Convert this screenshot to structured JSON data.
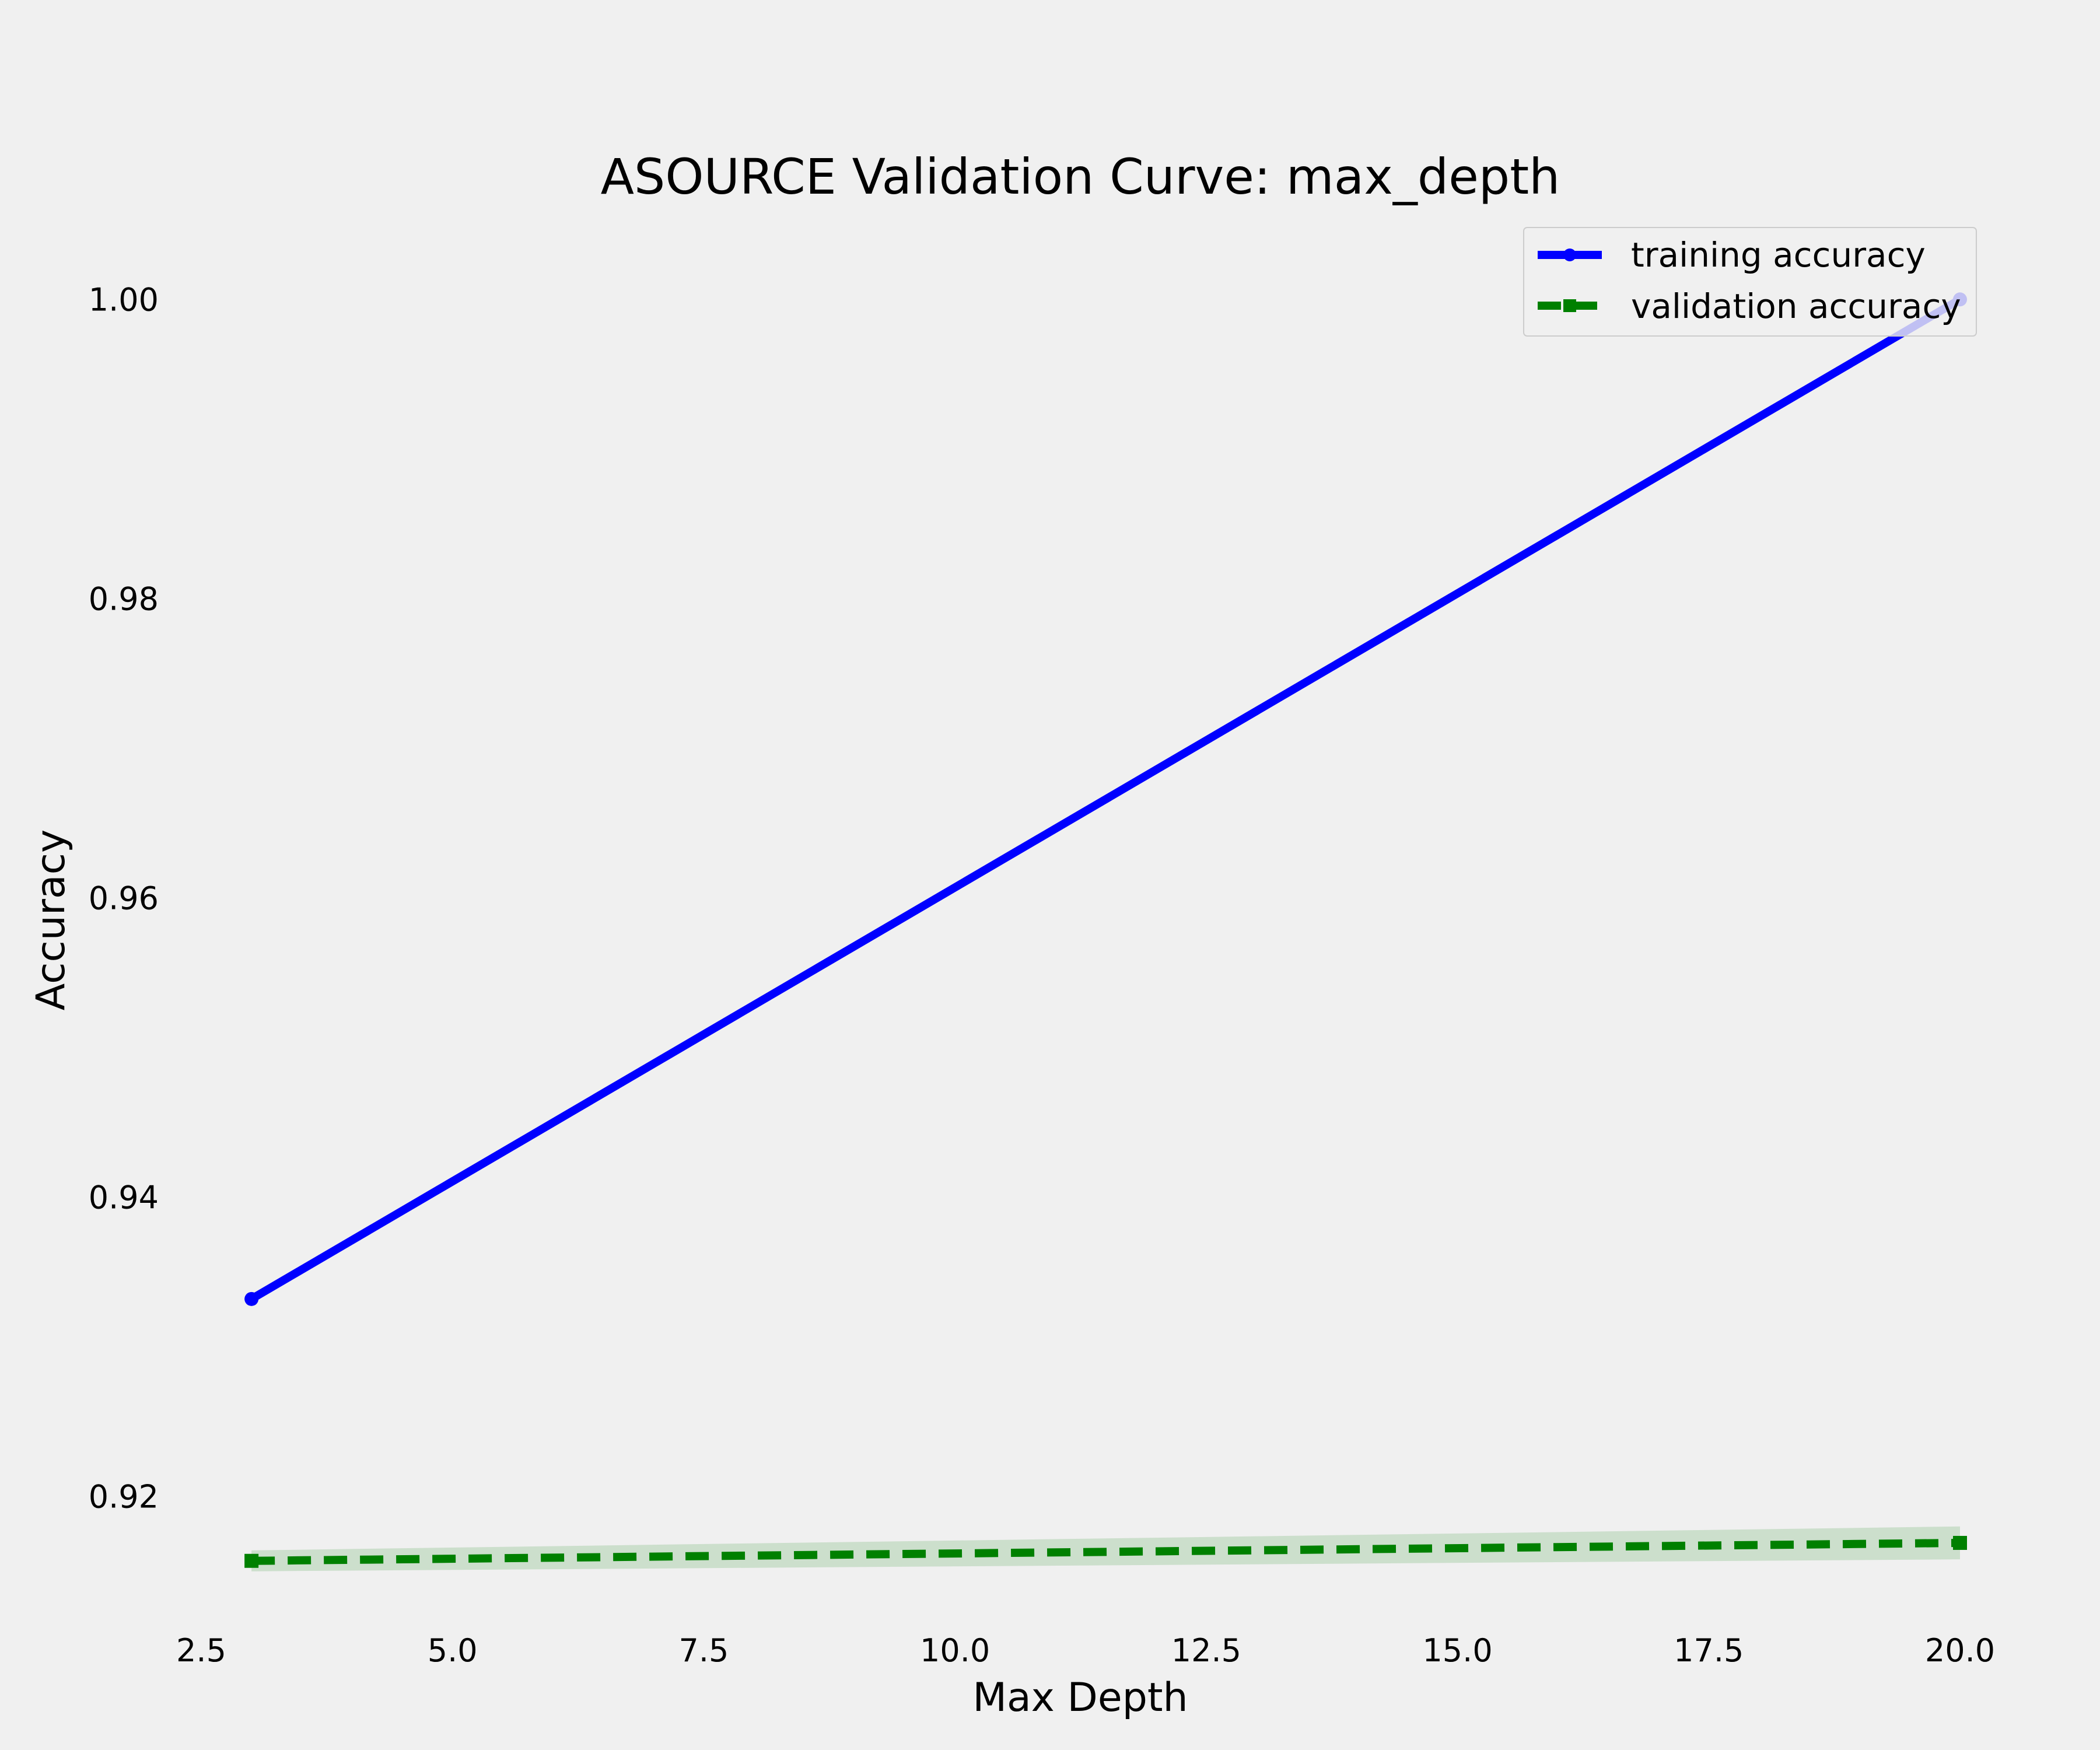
{
  "chart_data": {
    "type": "line",
    "title": "ASOURCE Validation Curve: max_depth",
    "xlabel": "Max Depth",
    "ylabel": "Accuracy",
    "xlim": [
      2.5,
      20.0
    ],
    "ylim": [
      0.913,
      1.002
    ],
    "xticks": [
      2.5,
      5.0,
      7.5,
      10.0,
      12.5,
      15.0,
      17.5,
      20.0
    ],
    "yticks": [
      0.92,
      0.94,
      0.96,
      0.98,
      1.0
    ],
    "xtick_labels": [
      "2.5",
      "5.0",
      "7.5",
      "10.0",
      "12.5",
      "15.0",
      "17.5",
      "20.0"
    ],
    "ytick_labels": [
      "0.92",
      "0.94",
      "0.96",
      "0.98",
      "1.00"
    ],
    "grid": false,
    "legend_position": "top-right",
    "series": [
      {
        "name": "training accuracy",
        "color": "#0000ff",
        "style": "solid",
        "marker": "circle",
        "x": [
          3,
          20
        ],
        "y": [
          0.9332,
          1.0
        ],
        "band": [
          [
            0.9332,
            0.9332
          ],
          [
            1.0,
            1.0
          ]
        ]
      },
      {
        "name": "validation accuracy",
        "color": "#008000",
        "style": "dashed",
        "marker": "square",
        "x": [
          3,
          20
        ],
        "y": [
          0.9157,
          0.9169
        ],
        "band": [
          [
            0.915,
            0.9164
          ],
          [
            0.9158,
            0.918
          ]
        ]
      }
    ]
  }
}
